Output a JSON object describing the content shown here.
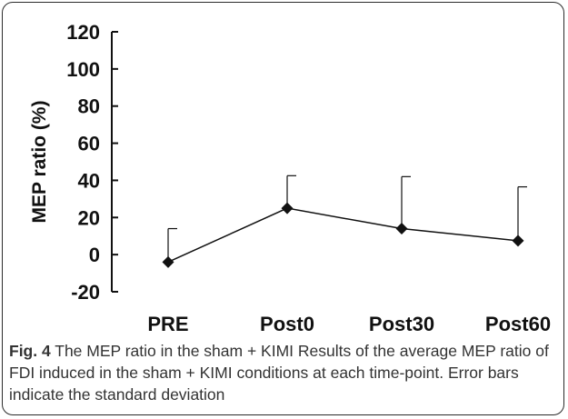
{
  "chart_data": {
    "type": "line",
    "title": "",
    "xlabel": "",
    "ylabel": "MEP ratio (%)",
    "categories": [
      "PRE",
      "Post0",
      "Post30",
      "Post60"
    ],
    "series": [
      {
        "values": [
          -4,
          25,
          14,
          7.5
        ],
        "error_upper": [
          14,
          42.5,
          42,
          36.5
        ]
      }
    ],
    "ylim": [
      -20,
      120
    ],
    "yticks": [
      120,
      100,
      80,
      60,
      40,
      20,
      0,
      -20
    ],
    "ytick_labels": [
      "120",
      "100",
      "80",
      "60",
      "40",
      "20",
      "0",
      "-20"
    ],
    "marker": "diamond",
    "error_bars": "upper standard deviation",
    "grid": false,
    "legend": "none",
    "colors": {
      "series": "#111111",
      "axis": "#111111"
    }
  },
  "caption": {
    "label": "Fig. 4",
    "text": " The MEP ratio in the sham + KIMI Results of the average MEP ratio of FDI induced in the sham + KIMI conditions at each time-point. Error bars indicate the standard deviation"
  }
}
